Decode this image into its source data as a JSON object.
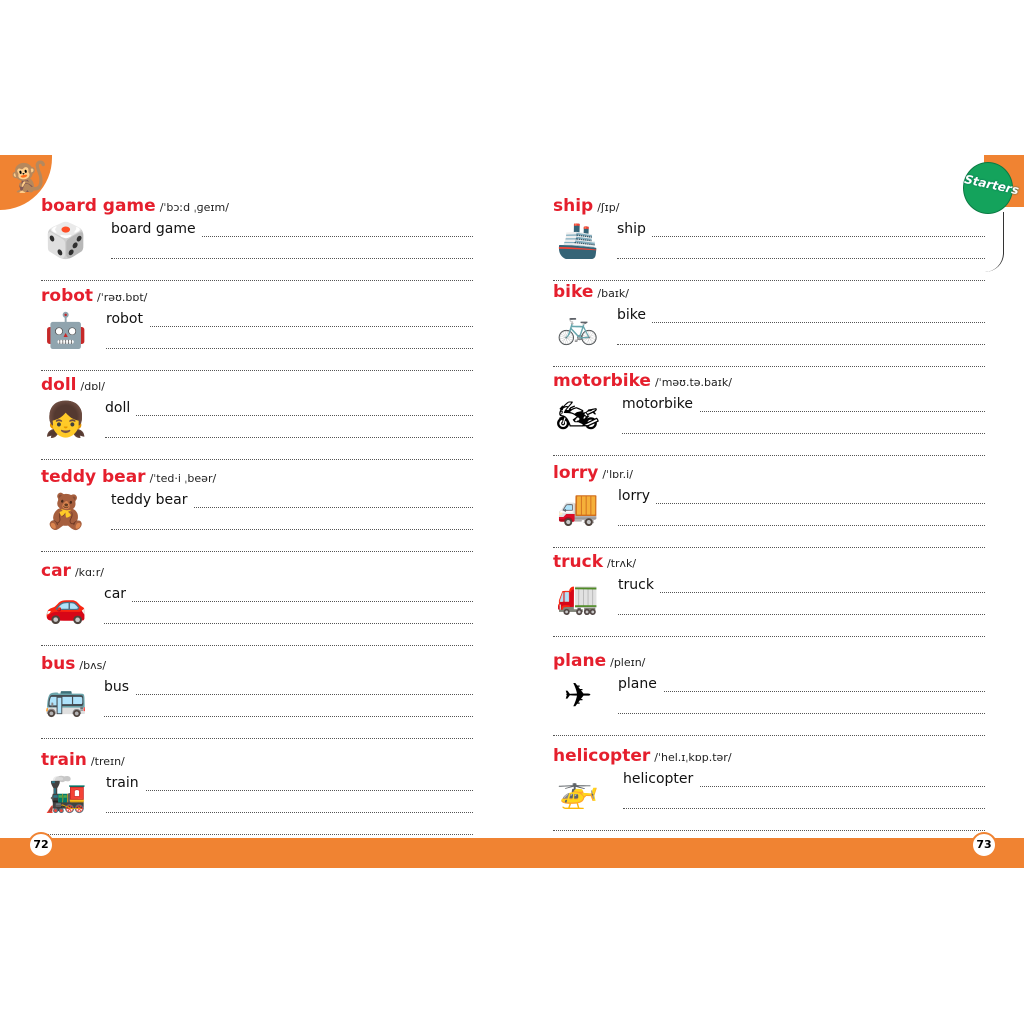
{
  "left_page": {
    "page_number": "72",
    "entries": [
      {
        "word": "board game",
        "ipa": "/ˈbɔːd ˌɡeɪm/",
        "icon": "board-game-icon",
        "glyph": "🎲"
      },
      {
        "word": "robot",
        "ipa": "/ˈrəʊ.bɒt/",
        "icon": "robot-icon",
        "glyph": "🤖"
      },
      {
        "word": "doll",
        "ipa": "/dɒl/",
        "icon": "doll-icon",
        "glyph": "👧"
      },
      {
        "word": "teddy bear",
        "ipa": "/ˈted·i ˌbeər/",
        "icon": "teddy-bear-icon",
        "glyph": "🧸"
      },
      {
        "word": "car",
        "ipa": "/kɑːr/",
        "icon": "car-icon",
        "glyph": "🚗"
      },
      {
        "word": "bus",
        "ipa": "/bʌs/",
        "icon": "bus-icon",
        "glyph": "🚌"
      },
      {
        "word": "train",
        "ipa": "/treɪn/",
        "icon": "train-icon",
        "glyph": "🚂"
      }
    ]
  },
  "right_page": {
    "page_number": "73",
    "badge": "Starters",
    "entries": [
      {
        "word": "ship",
        "ipa": "/ʃɪp/",
        "icon": "ship-icon",
        "glyph": "🚢"
      },
      {
        "word": "bike",
        "ipa": "/baɪk/",
        "icon": "bike-icon",
        "glyph": "🚲"
      },
      {
        "word": "motorbike",
        "ipa": "/ˈməʊ.tə.baɪk/",
        "icon": "motorbike-icon",
        "glyph": "🏍"
      },
      {
        "word": "lorry",
        "ipa": "/ˈlɒr.i/",
        "icon": "lorry-icon",
        "glyph": "🚚"
      },
      {
        "word": "truck",
        "ipa": "/trʌk/",
        "icon": "truck-icon",
        "glyph": "🚛"
      },
      {
        "word": "plane",
        "ipa": "/pleɪn/",
        "icon": "plane-icon",
        "glyph": "✈"
      },
      {
        "word": "helicopter",
        "ipa": "/ˈhel.ɪˌkɒp.tər/",
        "icon": "helicopter-icon",
        "glyph": "🚁"
      }
    ]
  },
  "colors": {
    "accent": "#f08332",
    "title": "#e51f2d",
    "badge": "#14a35c"
  }
}
